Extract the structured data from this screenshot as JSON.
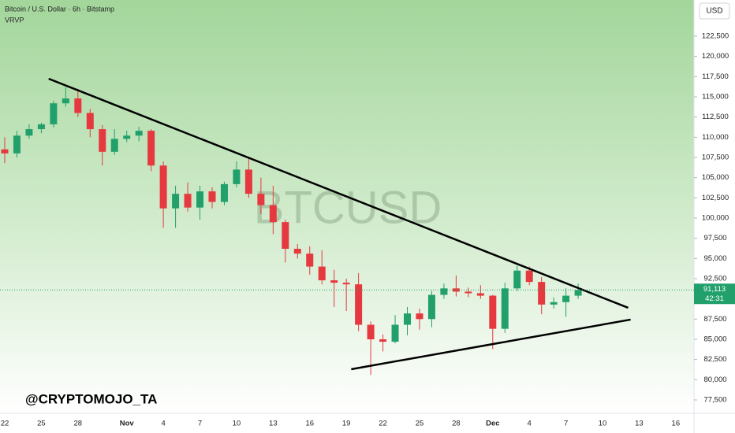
{
  "chart_data": {
    "type": "candlestick",
    "title": "Bitcoin / U.S. Dollar · 6h · Bitstamp",
    "indicator": "VRVP",
    "currency": "USD",
    "watermark": "BTCUSD",
    "author": "@CRYPTOMOJO_TA",
    "categories": [
      "22",
      null,
      null,
      "25",
      null,
      null,
      "28",
      null,
      null,
      null,
      "Nov",
      null,
      null,
      "4",
      null,
      null,
      "7",
      null,
      null,
      "10",
      null,
      null,
      "13",
      null,
      null,
      "16",
      null,
      null,
      "19",
      null,
      null,
      "22",
      null,
      null,
      "25",
      null,
      null,
      "28",
      null,
      null,
      "Dec",
      null,
      null,
      "4",
      null,
      null,
      "7",
      null,
      null,
      "10",
      null,
      null,
      "13",
      null,
      null,
      "16"
    ],
    "open": [
      108500,
      108000,
      110200,
      111000,
      111600,
      114200,
      114800,
      113000,
      111000,
      108200,
      109800,
      110200,
      110800,
      106500,
      101200,
      103000,
      101300,
      103300,
      102000,
      104200,
      106000,
      103000,
      101600,
      99500,
      96200,
      95600,
      94000,
      92300,
      92000,
      91800,
      86800,
      85000,
      84700,
      86800,
      88200,
      87500,
      90500,
      91300,
      90900,
      90700,
      90400,
      86300,
      91300,
      93500,
      92100,
      89300,
      89600,
      90400,
      null,
      null,
      null,
      null,
      null,
      null,
      null,
      null
    ],
    "high": [
      110000,
      110800,
      111600,
      111800,
      114500,
      116200,
      116000,
      113500,
      111500,
      111000,
      110800,
      111300,
      111000,
      107000,
      104000,
      104400,
      104000,
      103800,
      104500,
      107000,
      107500,
      105000,
      104000,
      99800,
      96800,
      96500,
      96000,
      93600,
      92500,
      93200,
      87200,
      85600,
      88000,
      89000,
      88800,
      91000,
      91900,
      92900,
      91400,
      91700,
      90500,
      92000,
      94100,
      94000,
      92700,
      90200,
      91300,
      91900,
      null,
      null,
      null,
      null,
      null,
      null,
      null,
      null
    ],
    "low": [
      106800,
      107500,
      109800,
      110500,
      111200,
      113800,
      112500,
      110000,
      106500,
      107800,
      109400,
      109500,
      105800,
      98800,
      98800,
      100800,
      99800,
      101200,
      101600,
      103800,
      102500,
      100500,
      98000,
      94500,
      95000,
      93000,
      91800,
      89000,
      88500,
      86000,
      80600,
      83500,
      84500,
      85500,
      86200,
      86500,
      90000,
      90300,
      90200,
      90000,
      83800,
      85800,
      91000,
      91700,
      88100,
      88800,
      87800,
      90000,
      null,
      null,
      null,
      null,
      null,
      null,
      null,
      null
    ],
    "close": [
      108000,
      110200,
      111000,
      111600,
      114200,
      114800,
      113000,
      111000,
      108200,
      109800,
      110200,
      110800,
      106500,
      101200,
      103000,
      101300,
      103300,
      102000,
      104200,
      106000,
      103000,
      101600,
      99500,
      96200,
      95600,
      94000,
      92300,
      92000,
      91800,
      86800,
      85000,
      84700,
      86800,
      88200,
      87500,
      90500,
      91300,
      90900,
      90700,
      90400,
      86300,
      91300,
      93500,
      92100,
      89300,
      89600,
      90400,
      91100,
      null,
      null,
      null,
      null,
      null,
      null,
      null,
      null
    ],
    "up_color": "#22a06b",
    "down_color": "#e5393f",
    "last_price": {
      "value": 91113,
      "label": "91,113"
    },
    "countdown": "42:31",
    "trendlines": [
      {
        "x": [
          3.6,
          51.1
        ],
        "y": [
          117240,
          88900
        ]
      },
      {
        "x": [
          28.4,
          51.3
        ],
        "y": [
          81300,
          87440
        ]
      }
    ],
    "ylim": [
      75844,
      126980
    ],
    "yticks": [
      {
        "value": 77500,
        "label": "77,500"
      },
      {
        "value": 80000,
        "label": "80,000"
      },
      {
        "value": 82500,
        "label": "82,500"
      },
      {
        "value": 85000,
        "label": "85,000"
      },
      {
        "value": 87500,
        "label": "87,500"
      },
      {
        "value": 90000,
        "label": "90,000"
      },
      {
        "value": 92500,
        "label": "92,500"
      },
      {
        "value": 95000,
        "label": "95,000"
      },
      {
        "value": 97500,
        "label": "97,500"
      },
      {
        "value": 100000,
        "label": "100,000"
      },
      {
        "value": 102500,
        "label": "102,500"
      },
      {
        "value": 105000,
        "label": "105,000"
      },
      {
        "value": 107500,
        "label": "107,500"
      },
      {
        "value": 110000,
        "label": "110,000"
      },
      {
        "value": 112500,
        "label": "112,500"
      },
      {
        "value": 115000,
        "label": "115,000"
      },
      {
        "value": 117500,
        "label": "117,500"
      },
      {
        "value": 120000,
        "label": "120,000"
      },
      {
        "value": 122500,
        "label": "122,500"
      }
    ]
  }
}
